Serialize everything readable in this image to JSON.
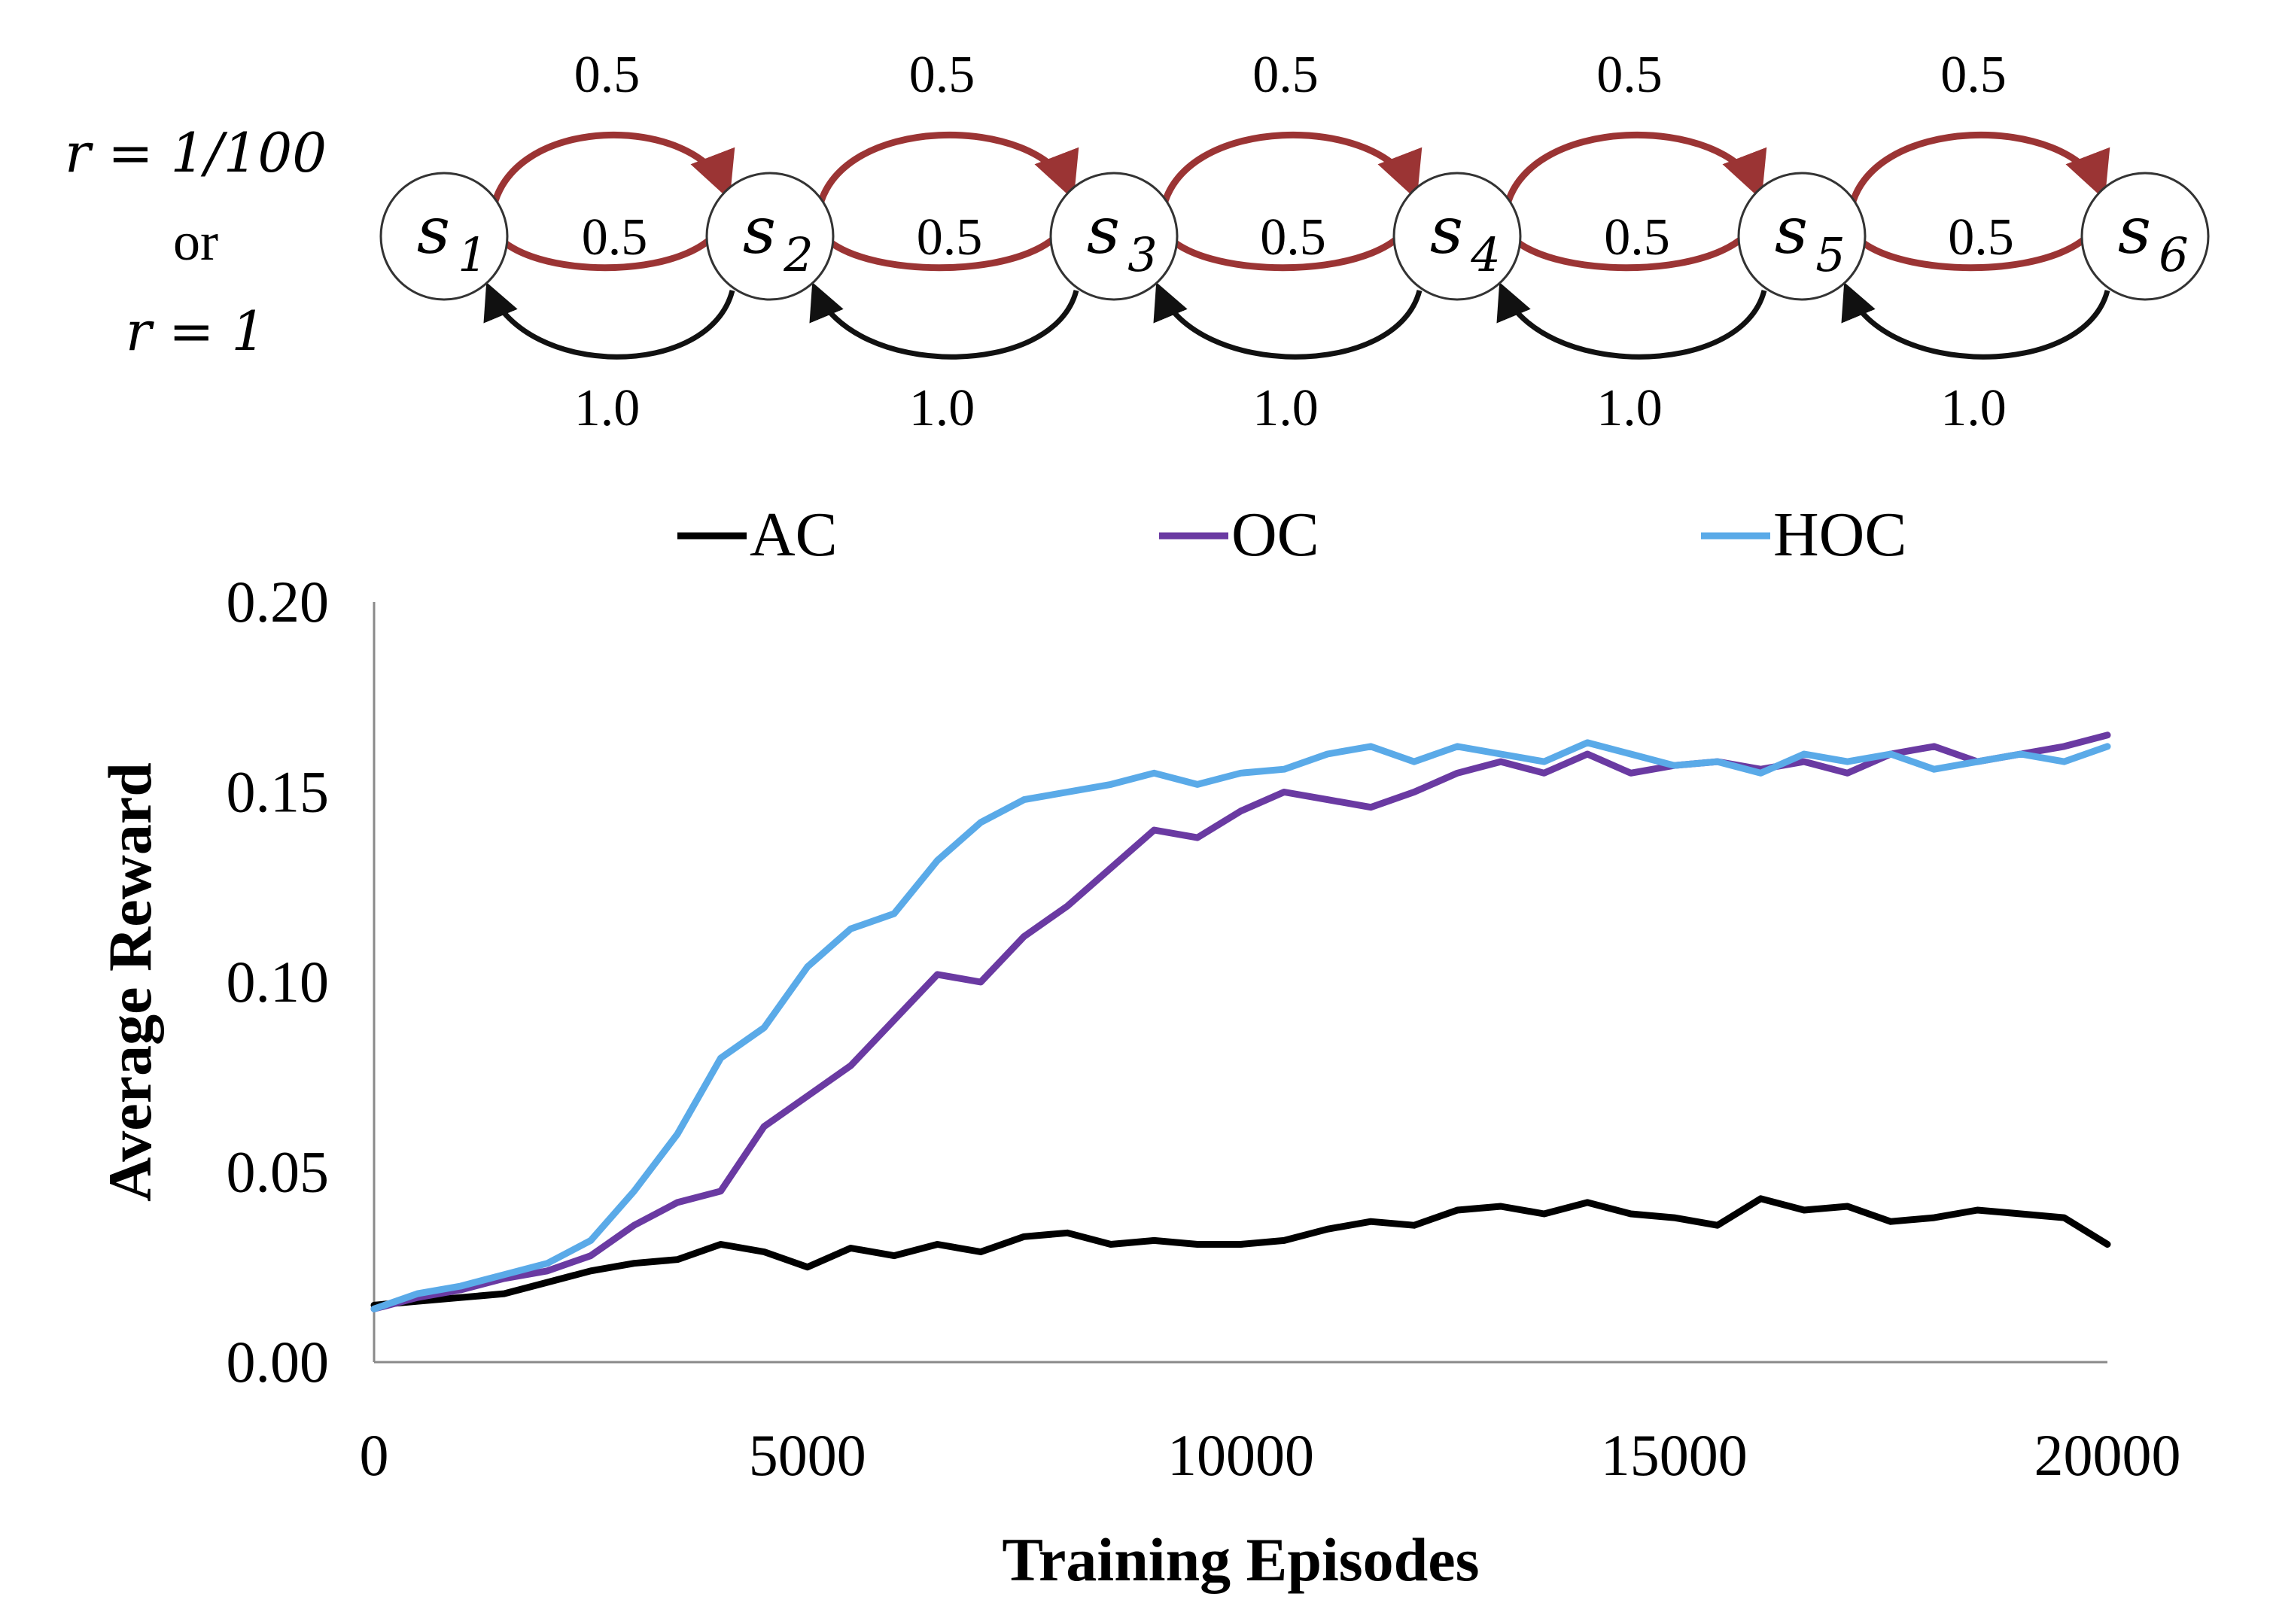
{
  "diagram": {
    "reward_label_1": "r = 1/100",
    "reward_label_or": "or",
    "reward_label_2": "r = 1",
    "states": [
      "s",
      "s",
      "s",
      "s",
      "s",
      "s"
    ],
    "state_subscripts": [
      "1",
      "2",
      "3",
      "4",
      "5",
      "6"
    ],
    "forward_top_probs": [
      "0.5",
      "0.5",
      "0.5",
      "0.5",
      "0.5"
    ],
    "forward_mid_probs": [
      "0.5",
      "0.5",
      "0.5",
      "0.5",
      "0.5"
    ],
    "backward_probs": [
      "1.0",
      "1.0",
      "1.0",
      "1.0",
      "1.0"
    ],
    "forward_color": "#9b3434",
    "backward_color": "#111111"
  },
  "chart_data": {
    "type": "line",
    "title": "",
    "xlabel": "Training Episodes",
    "ylabel": "Average Reward",
    "xlim": [
      0,
      20000
    ],
    "ylim": [
      0,
      0.2
    ],
    "xticks": [
      0,
      5000,
      10000,
      15000,
      20000
    ],
    "xtick_labels": [
      "0",
      "5000",
      "10000",
      "15000",
      "20000"
    ],
    "yticks": [
      0,
      0.05,
      0.1,
      0.15,
      0.2
    ],
    "ytick_labels": [
      "0.00",
      "0.05",
      "0.10",
      "0.15",
      "0.20"
    ],
    "legend_position": "top",
    "x": [
      0,
      500,
      1000,
      1500,
      2000,
      2500,
      3000,
      3500,
      4000,
      4500,
      5000,
      5500,
      6000,
      6500,
      7000,
      7500,
      8000,
      8500,
      9000,
      9500,
      10000,
      10500,
      11000,
      11500,
      12000,
      12500,
      13000,
      13500,
      14000,
      14500,
      15000,
      15500,
      16000,
      16500,
      17000,
      17500,
      18000,
      18500,
      19000,
      19500,
      20000
    ],
    "series": [
      {
        "name": "AC",
        "color": "#000000",
        "values": [
          0.015,
          0.016,
          0.017,
          0.018,
          0.021,
          0.024,
          0.026,
          0.027,
          0.031,
          0.029,
          0.025,
          0.03,
          0.028,
          0.031,
          0.029,
          0.033,
          0.034,
          0.031,
          0.032,
          0.031,
          0.031,
          0.032,
          0.035,
          0.037,
          0.036,
          0.04,
          0.041,
          0.039,
          0.042,
          0.039,
          0.038,
          0.036,
          0.043,
          0.04,
          0.041,
          0.037,
          0.038,
          0.04,
          0.039,
          0.038,
          0.031
        ]
      },
      {
        "name": "OC",
        "color": "#6a3aa2",
        "values": [
          0.014,
          0.017,
          0.019,
          0.022,
          0.024,
          0.028,
          0.036,
          0.042,
          0.045,
          0.062,
          0.07,
          0.078,
          0.09,
          0.102,
          0.1,
          0.112,
          0.12,
          0.13,
          0.14,
          0.138,
          0.145,
          0.15,
          0.148,
          0.146,
          0.15,
          0.155,
          0.158,
          0.155,
          0.16,
          0.155,
          0.157,
          0.158,
          0.156,
          0.158,
          0.155,
          0.16,
          0.162,
          0.158,
          0.16,
          0.162,
          0.165
        ]
      },
      {
        "name": "HOC",
        "color": "#5aaae8",
        "values": [
          0.014,
          0.018,
          0.02,
          0.023,
          0.026,
          0.032,
          0.045,
          0.06,
          0.08,
          0.088,
          0.104,
          0.114,
          0.118,
          0.132,
          0.142,
          0.148,
          0.15,
          0.152,
          0.155,
          0.152,
          0.155,
          0.156,
          0.16,
          0.162,
          0.158,
          0.162,
          0.16,
          0.158,
          0.163,
          0.16,
          0.157,
          0.158,
          0.155,
          0.16,
          0.158,
          0.16,
          0.156,
          0.158,
          0.16,
          0.158,
          0.162
        ]
      }
    ]
  }
}
